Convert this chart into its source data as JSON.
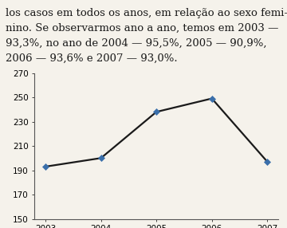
{
  "years": [
    2003,
    2004,
    2005,
    2006,
    2007
  ],
  "values": [
    193,
    200,
    238,
    249,
    197
  ],
  "ylim": [
    150,
    270
  ],
  "yticks": [
    150,
    170,
    190,
    210,
    230,
    250,
    270
  ],
  "line_color": "#1a1a1a",
  "marker_color": "#3a6faa",
  "marker": "D",
  "marker_size": 4.5,
  "line_width": 1.6,
  "bg_color": "#f5f2eb",
  "tick_fontsize": 7.5,
  "text_lines": [
    "los casos em todos os anos, em relação ao sexo femi-",
    "nino. Se observarmos ano a ano, temos em 2003 —",
    "93,3%, no ano de 2004 — 95,5%, 2005 — 90,9%,",
    "2006 — 93,6% e 2007 — 93,0%."
  ],
  "text_fontsize": 9.5
}
